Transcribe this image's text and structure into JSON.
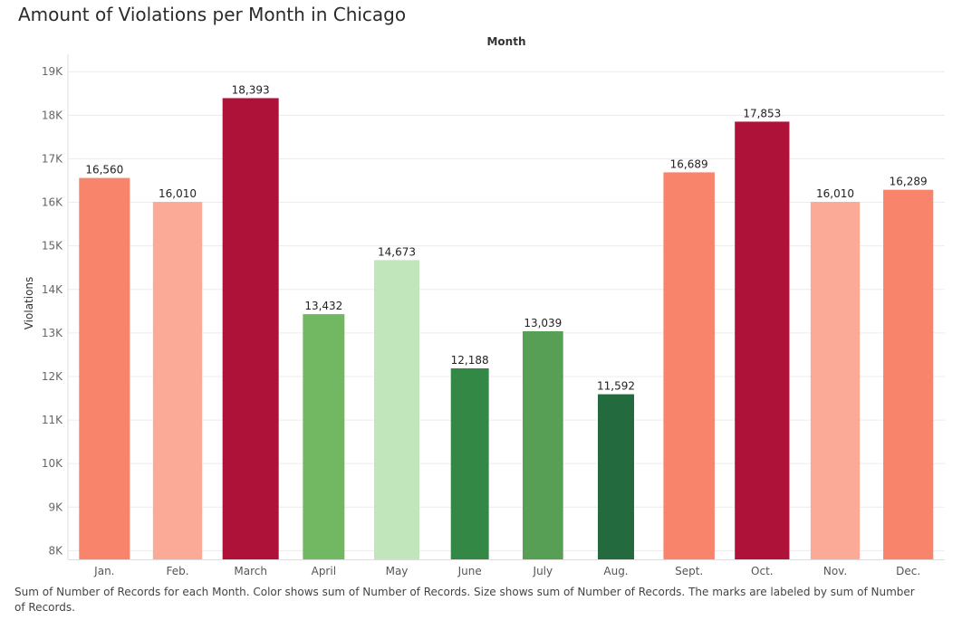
{
  "title": "Amount of Violations per Month in Chicago",
  "caption": "Sum of Number of Records for each Month.  Color shows sum of Number of Records.  Size shows sum of Number of Records.  The marks are labeled by sum of Number of Records.",
  "chart_data": {
    "type": "bar",
    "title": "Amount of Violations per Month in Chicago",
    "xlabel": "Month",
    "ylabel": "Violations",
    "ylim": [
      7800,
      19400
    ],
    "y_ticks": [
      8000,
      9000,
      10000,
      11000,
      12000,
      13000,
      14000,
      15000,
      16000,
      17000,
      18000,
      19000
    ],
    "y_tick_labels": [
      "8K",
      "9K",
      "10K",
      "11K",
      "12K",
      "13K",
      "14K",
      "15K",
      "16K",
      "17K",
      "18K",
      "19K"
    ],
    "categories": [
      "Jan.",
      "Feb.",
      "March",
      "April",
      "May",
      "June",
      "July",
      "Aug.",
      "Sept.",
      "Oct.",
      "Nov.",
      "Dec."
    ],
    "values": [
      16560,
      16010,
      18393,
      13432,
      14673,
      12188,
      13039,
      11592,
      16689,
      17853,
      16010,
      16289
    ],
    "value_labels": [
      "16,560",
      "16,010",
      "18,393",
      "13,432",
      "14,673",
      "12,188",
      "13,039",
      "11,592",
      "16,689",
      "17,853",
      "16,010",
      "16,289"
    ],
    "colors": [
      "#f8846c",
      "#fcaa98",
      "#af1238",
      "#72b862",
      "#c2e6bb",
      "#338846",
      "#569f55",
      "#236b3f",
      "#f8846c",
      "#af1238",
      "#fcaa98",
      "#f8846c"
    ],
    "grid": true,
    "legend": "none"
  }
}
